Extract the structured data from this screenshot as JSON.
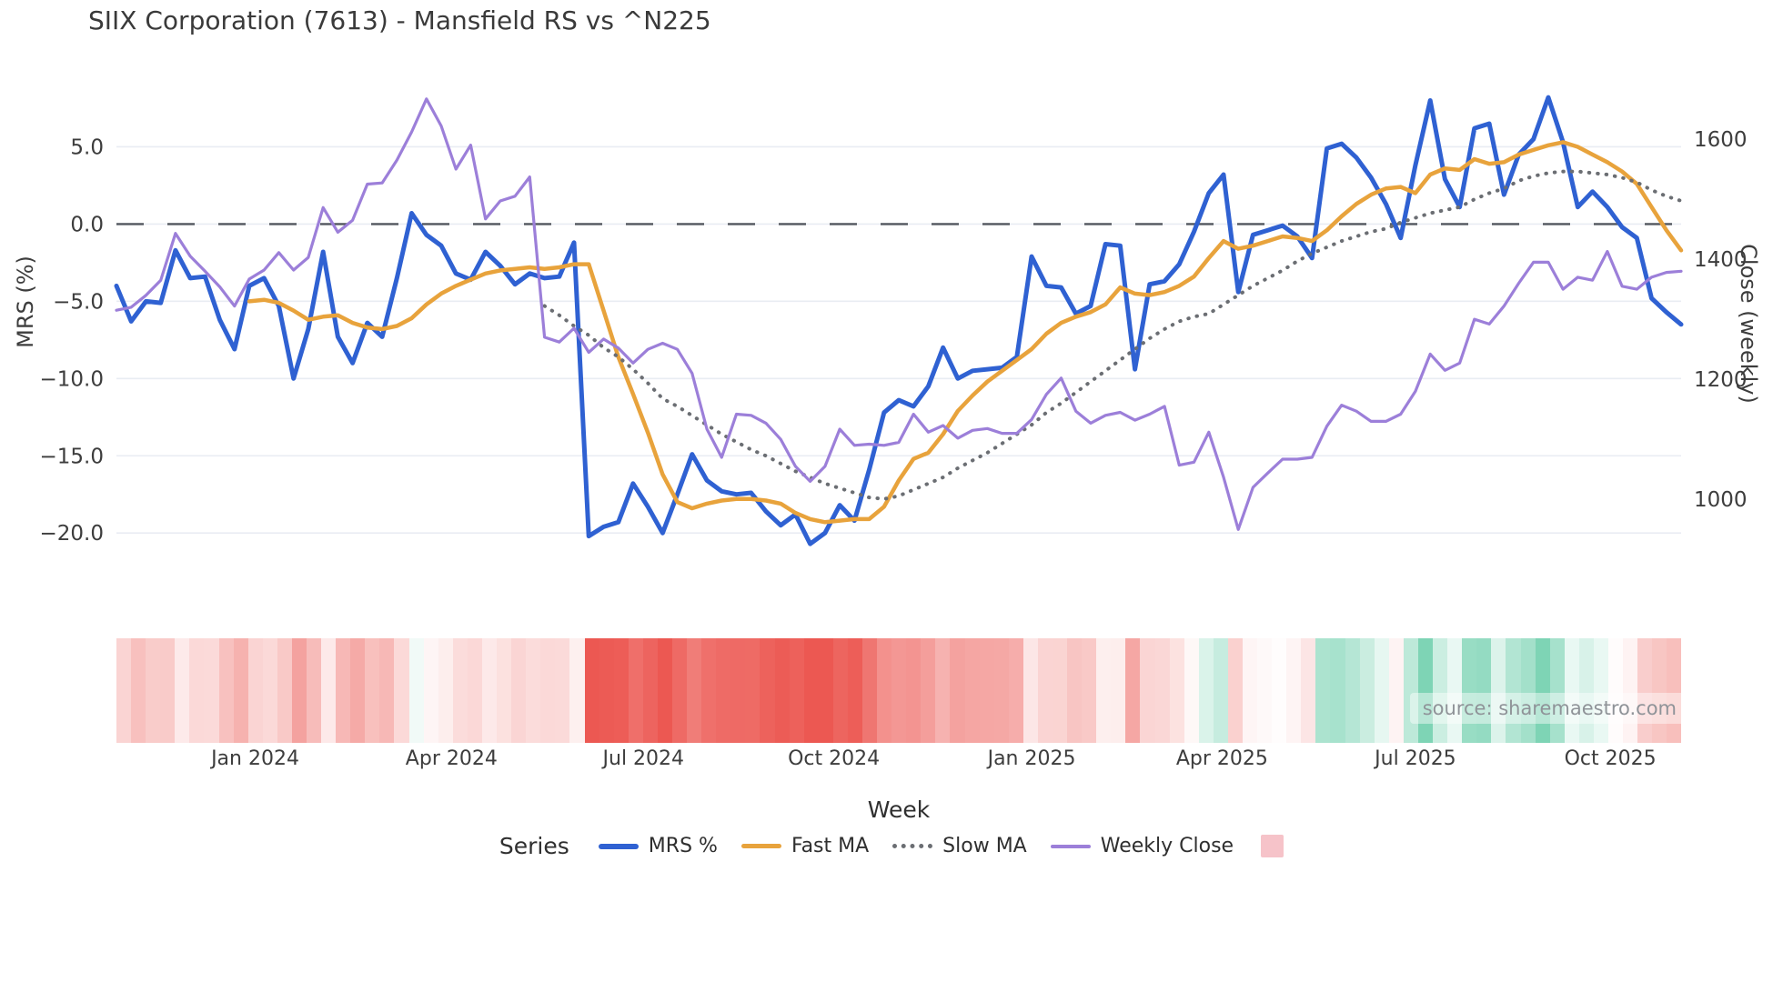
{
  "title": "SIIX Corporation (7613) - Mansfield RS vs ^N225",
  "source_note": "source: sharemaestro.com",
  "colors": {
    "grid": "#e9ecf3",
    "zero_line": "#52565e",
    "tick_text": "#3d3d3d",
    "title_text": "#3a3a3a",
    "source_text": "#8f9398",
    "legend_pink_swatch": "#f6c3c9"
  },
  "legend": {
    "title": "Series"
  },
  "chart_data": {
    "type": "line",
    "title": "SIIX Corporation (7613) - Mansfield RS vs ^N225",
    "xlabel": "Week",
    "ylabel_left": "MRS (%)",
    "ylabel_right": "Close (weekly)",
    "grid": true,
    "zero_line_dashed": true,
    "legend_position": "bottom",
    "n_weeks": 107,
    "x_ticks": [
      {
        "label": "Jan 2024",
        "week": 9.4
      },
      {
        "label": "Apr 2024",
        "week": 22.7
      },
      {
        "label": "Jul 2024",
        "week": 35.7
      },
      {
        "label": "Oct 2024",
        "week": 48.6
      },
      {
        "label": "Jan 2025",
        "week": 62.0
      },
      {
        "label": "Apr 2025",
        "week": 74.9
      },
      {
        "label": "Jul 2025",
        "week": 88.0
      },
      {
        "label": "Oct 2025",
        "week": 101.2
      }
    ],
    "y_left_ticks": [
      {
        "label": "5.0",
        "value": 5
      },
      {
        "label": "0.0",
        "value": 0
      },
      {
        "label": "−5.0",
        "value": -5
      },
      {
        "label": "−10.0",
        "value": -10
      },
      {
        "label": "−15.0",
        "value": -15
      },
      {
        "label": "−20.0",
        "value": -20
      }
    ],
    "y_right_ticks": [
      {
        "label": "1600",
        "value": 1600
      },
      {
        "label": "1400",
        "value": 1400
      },
      {
        "label": "1200",
        "value": 1200
      },
      {
        "label": "1000",
        "value": 1000
      }
    ],
    "ylim_left": [
      -21.4,
      9.5
    ],
    "ylim_right": [
      908,
      1703
    ],
    "series": [
      {
        "name": "MRS %",
        "axis": "left",
        "color": "#2f61d2",
        "style": "solid",
        "width": 5,
        "values": [
          -4.0,
          -6.3,
          -5.0,
          -5.1,
          -1.7,
          -3.5,
          -3.4,
          -6.2,
          -8.1,
          -4.0,
          -3.5,
          -5.3,
          -10.0,
          -6.8,
          -1.8,
          -7.3,
          -9.0,
          -6.4,
          -7.3,
          -3.5,
          0.7,
          -0.7,
          -1.4,
          -3.2,
          -3.6,
          -1.8,
          -2.7,
          -3.9,
          -3.2,
          -3.5,
          -3.4,
          -1.2,
          -20.2,
          -19.6,
          -19.3,
          -16.8,
          -18.3,
          -20.0,
          -17.5,
          -14.9,
          -16.6,
          -17.3,
          -17.5,
          -17.4,
          -18.6,
          -19.5,
          -18.8,
          -20.7,
          -20.0,
          -18.2,
          -19.2,
          -15.9,
          -12.2,
          -11.4,
          -11.8,
          -10.5,
          -8.0,
          -10.0,
          -9.5,
          -9.4,
          -9.3,
          -8.6,
          -2.1,
          -4.0,
          -4.1,
          -5.8,
          -5.3,
          -1.3,
          -1.4,
          -9.4,
          -3.9,
          -3.7,
          -2.6,
          -0.5,
          2.0,
          3.2,
          -4.4,
          -0.7,
          -0.4,
          -0.1,
          -0.8,
          -2.2,
          4.9,
          5.2,
          4.3,
          3.0,
          1.3,
          -0.9,
          3.8,
          8.0,
          2.9,
          1.1,
          6.2,
          6.5,
          1.9,
          4.5,
          5.5,
          8.2,
          5.3,
          1.1,
          2.1,
          1.1,
          -0.2,
          -0.9,
          -4.8,
          -5.7,
          -6.5
        ]
      },
      {
        "name": "Fast MA",
        "axis": "left",
        "color": "#e8a33c",
        "style": "solid",
        "width": 4.5,
        "values": [
          null,
          null,
          null,
          null,
          null,
          null,
          null,
          null,
          null,
          -5.0,
          -4.9,
          -5.1,
          -5.6,
          -6.2,
          -6.0,
          -5.9,
          -6.4,
          -6.7,
          -6.8,
          -6.6,
          -6.1,
          -5.2,
          -4.5,
          -4.0,
          -3.6,
          -3.2,
          -3.0,
          -2.9,
          -2.8,
          -2.9,
          -2.8,
          -2.6,
          -2.6,
          -5.6,
          -8.6,
          -11.0,
          -13.5,
          -16.2,
          -18.0,
          -18.4,
          -18.1,
          -17.9,
          -17.8,
          -17.8,
          -17.9,
          -18.1,
          -18.7,
          -19.1,
          -19.3,
          -19.2,
          -19.1,
          -19.1,
          -18.3,
          -16.6,
          -15.2,
          -14.8,
          -13.6,
          -12.1,
          -11.1,
          -10.2,
          -9.5,
          -8.8,
          -8.1,
          -7.1,
          -6.4,
          -6.0,
          -5.7,
          -5.2,
          -4.1,
          -4.5,
          -4.6,
          -4.4,
          -4.0,
          -3.4,
          -2.2,
          -1.1,
          -1.6,
          -1.4,
          -1.1,
          -0.8,
          -0.9,
          -1.1,
          -0.4,
          0.5,
          1.3,
          1.9,
          2.3,
          2.4,
          2.0,
          3.2,
          3.6,
          3.5,
          4.2,
          3.9,
          4.0,
          4.5,
          4.8,
          5.1,
          5.3,
          5.0,
          4.5,
          4.0,
          3.4,
          2.6,
          1.1,
          -0.4,
          -1.7
        ]
      },
      {
        "name": "Slow MA",
        "axis": "left",
        "color": "#6b6e73",
        "style": "dotted",
        "width": 4,
        "values": [
          null,
          null,
          null,
          null,
          null,
          null,
          null,
          null,
          null,
          null,
          null,
          null,
          null,
          null,
          null,
          null,
          null,
          null,
          null,
          null,
          null,
          null,
          null,
          null,
          null,
          null,
          null,
          null,
          null,
          -5.3,
          -5.9,
          -6.6,
          -7.2,
          -8.0,
          -8.6,
          -9.4,
          -10.3,
          -11.3,
          -11.8,
          -12.4,
          -13.0,
          -13.6,
          -14.1,
          -14.6,
          -15.0,
          -15.5,
          -16.0,
          -16.4,
          -16.8,
          -17.1,
          -17.4,
          -17.7,
          -17.8,
          -17.6,
          -17.2,
          -16.8,
          -16.4,
          -15.8,
          -15.3,
          -14.8,
          -14.2,
          -13.6,
          -13.0,
          -12.2,
          -11.6,
          -10.9,
          -10.2,
          -9.5,
          -8.8,
          -8.1,
          -7.4,
          -6.8,
          -6.3,
          -6.0,
          -5.8,
          -5.2,
          -4.6,
          -4.0,
          -3.5,
          -3.0,
          -2.4,
          -1.9,
          -1.5,
          -1.1,
          -0.8,
          -0.5,
          -0.3,
          0.1,
          0.4,
          0.7,
          0.9,
          1.1,
          1.6,
          2.0,
          2.3,
          2.8,
          3.1,
          3.3,
          3.4,
          3.4,
          3.3,
          3.2,
          3.0,
          2.7,
          2.2,
          1.8,
          1.5
        ]
      },
      {
        "name": "Weekly Close",
        "axis": "right",
        "color": "#9c7fd9",
        "style": "solid",
        "width": 3.2,
        "values": [
          1315,
          1320,
          1340,
          1365,
          1443,
          1405,
          1380,
          1354,
          1322,
          1367,
          1382,
          1411,
          1382,
          1403,
          1486,
          1445,
          1465,
          1525,
          1527,
          1565,
          1612,
          1667,
          1622,
          1550,
          1590,
          1467,
          1497,
          1505,
          1537,
          1270,
          1262,
          1285,
          1245,
          1267,
          1252,
          1227,
          1250,
          1260,
          1250,
          1210,
          1117,
          1070,
          1142,
          1140,
          1127,
          1100,
          1055,
          1030,
          1055,
          1117,
          1090,
          1092,
          1090,
          1095,
          1142,
          1112,
          1123,
          1102,
          1115,
          1118,
          1110,
          1110,
          1133,
          1175,
          1202,
          1147,
          1127,
          1140,
          1145,
          1132,
          1142,
          1155,
          1057,
          1062,
          1112,
          1037,
          950,
          1020,
          1044,
          1067,
          1067,
          1070,
          1122,
          1157,
          1147,
          1130,
          1130,
          1142,
          1180,
          1242,
          1215,
          1227,
          1300,
          1292,
          1322,
          1360,
          1395,
          1395,
          1350,
          1370,
          1365,
          1413,
          1355,
          1350,
          1370,
          1378,
          1380
        ]
      }
    ],
    "heatmap_strip": {
      "based_on": "MRS %",
      "negative_color": "#ec5852",
      "positive_color": "#7ed4b5",
      "neutral_color": "#ffffff"
    }
  }
}
